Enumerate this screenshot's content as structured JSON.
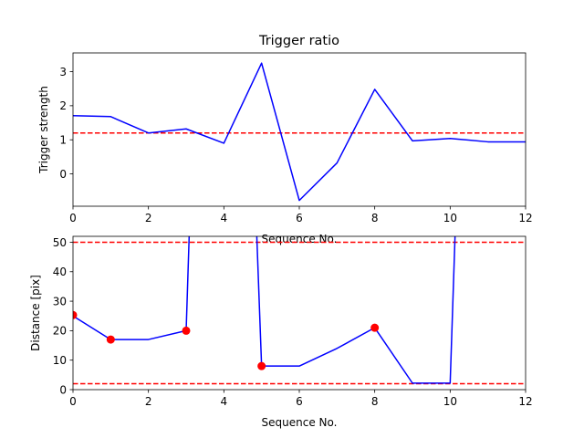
{
  "chart_data": [
    {
      "type": "line",
      "title": "Trigger ratio",
      "xlabel": "Sequence No.",
      "ylabel": "Trigger strength",
      "xlim": [
        0,
        12
      ],
      "ylim": [
        -0.95,
        3.55
      ],
      "xticks": [
        0,
        2,
        4,
        6,
        8,
        10,
        12
      ],
      "yticks": [
        0,
        1,
        2,
        3
      ],
      "grid": false,
      "series": [
        {
          "color": "#0000ff",
          "x": [
            0,
            1,
            2,
            3,
            4,
            5,
            6,
            7,
            8,
            9,
            10,
            11,
            12
          ],
          "y": [
            1.71,
            1.68,
            1.2,
            1.32,
            0.9,
            3.25,
            -0.78,
            0.32,
            2.48,
            0.97,
            1.04,
            0.94,
            0.94
          ]
        }
      ],
      "hlines": [
        {
          "y": 1.2,
          "color": "#ff0000",
          "style": "dashed"
        }
      ]
    },
    {
      "type": "line",
      "title": "",
      "xlabel": "Sequence No.",
      "ylabel": "Distance [pix]",
      "xlim": [
        0,
        12
      ],
      "ylim": [
        0,
        52
      ],
      "xticks": [
        0,
        2,
        4,
        6,
        8,
        10,
        12
      ],
      "yticks": [
        0,
        10,
        20,
        30,
        40,
        50
      ],
      "grid": false,
      "series": [
        {
          "color": "#0000ff",
          "x": [
            0,
            1,
            2,
            3,
            3.1,
            null,
            4.85,
            5,
            6,
            7,
            8,
            9,
            10,
            10.15
          ],
          "y": [
            25,
            17,
            17,
            20,
            60,
            null,
            60,
            8,
            8,
            14,
            21,
            2.2,
            2.2,
            60
          ]
        }
      ],
      "markers": {
        "color": "#ff0000",
        "x": [
          0,
          1,
          3,
          5,
          8
        ],
        "y": [
          25.3,
          17,
          20,
          8,
          21
        ]
      },
      "hlines": [
        {
          "y": 50,
          "color": "#ff0000",
          "style": "dashed"
        },
        {
          "y": 2,
          "color": "#ff0000",
          "style": "dashed"
        }
      ]
    }
  ]
}
